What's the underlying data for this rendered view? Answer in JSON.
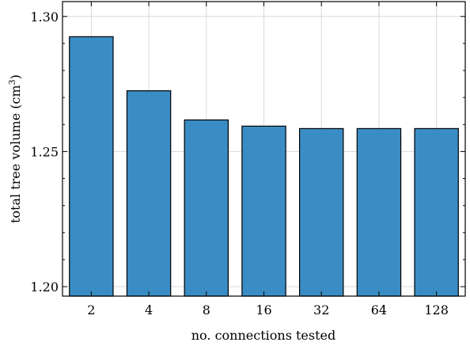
{
  "chart_data": {
    "type": "bar",
    "categories": [
      "2",
      "4",
      "8",
      "16",
      "32",
      "64",
      "128"
    ],
    "values": [
      1.2925,
      1.2725,
      1.2617,
      1.2594,
      1.2585,
      1.2585,
      1.2585
    ],
    "title": "",
    "xlabel": "no. connections tested",
    "ylabel_main": "total tree volume (cm",
    "ylabel_sup": "3",
    "ylabel_tail": ")",
    "ylim": [
      1.1965,
      1.3055
    ],
    "yticks": [
      1.2,
      1.25,
      1.3
    ],
    "ytick_labels": [
      "1.20",
      "1.25",
      "1.30"
    ],
    "bar_color": "#3a8dc4",
    "grid": true
  }
}
